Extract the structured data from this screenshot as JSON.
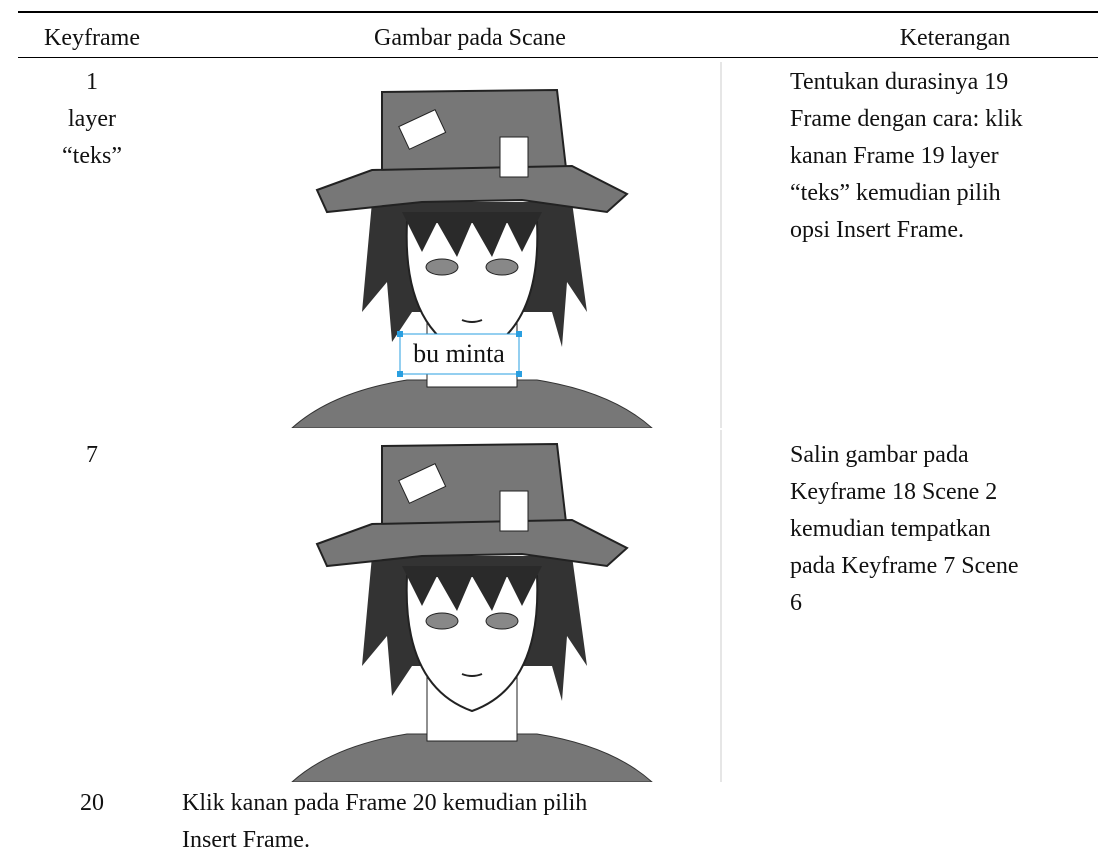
{
  "table": {
    "header": [
      "Keyframe",
      "Gambar pada Scane",
      "Keterangan"
    ],
    "rows": [
      {
        "keyframe": [
          "1",
          "layer",
          "“teks”"
        ],
        "image_text": "bu minta",
        "keterangan": [
          "Tentukan durasinya 19",
          "Frame dengan cara: klik",
          "kanan Frame 19 layer",
          "“teks” kemudian pilih",
          "opsi Insert Frame."
        ]
      },
      {
        "keyframe": [
          "7"
        ],
        "keterangan": [
          "Salin gambar pada",
          "Keyframe 18 Scene 2",
          "kemudian tempatkan",
          "pada Keyframe 7 Scene",
          "6"
        ]
      },
      {
        "keyframe": [
          "20"
        ],
        "keterangan": [
          "Klik kanan pada Frame 20 kemudian pilih",
          "Insert Frame."
        ]
      }
    ]
  }
}
